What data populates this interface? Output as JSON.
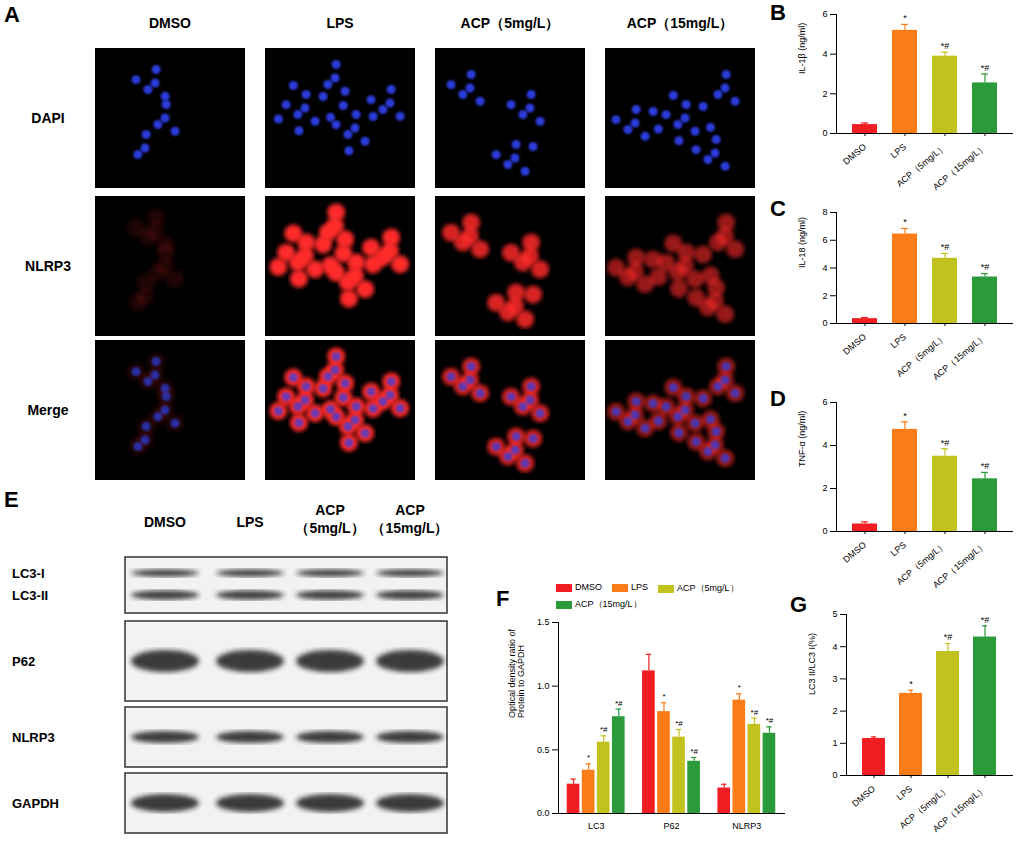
{
  "chart_data": [
    {
      "type": "bar",
      "title": "B",
      "categories": [
        "DMSO",
        "LPS",
        "ACP（5mg/L）",
        "ACP（15mg/L）"
      ],
      "values": [
        0.45,
        5.2,
        3.9,
        2.55
      ],
      "errors": [
        0.08,
        0.3,
        0.2,
        0.45
      ],
      "annotations": [
        null,
        "*",
        "*#",
        "*#"
      ],
      "colors": [
        "#f01e23",
        "#fb7b17",
        "#c2c21f",
        "#2a9a3a"
      ],
      "ylabel": "IL-1β (ng/ml)",
      "ylim": [
        0,
        6
      ],
      "yticks": [
        0,
        2,
        4,
        6
      ]
    },
    {
      "type": "bar",
      "title": "C",
      "categories": [
        "DMSO",
        "LPS",
        "ACP（5mg/L）",
        "ACP（15mg/L）"
      ],
      "values": [
        0.35,
        6.45,
        4.7,
        3.35
      ],
      "errors": [
        0.08,
        0.4,
        0.35,
        0.25
      ],
      "annotations": [
        null,
        "*",
        "*#",
        "*#"
      ],
      "colors": [
        "#f01e23",
        "#fb7b17",
        "#c2c21f",
        "#2a9a3a"
      ],
      "ylabel": "IL-18 (ng/ml)",
      "ylim": [
        0,
        8
      ],
      "yticks": [
        0,
        2,
        4,
        6,
        8
      ]
    },
    {
      "type": "bar",
      "title": "D",
      "categories": [
        "DMSO",
        "LPS",
        "ACP（5mg/L）",
        "ACP（15mg/L）"
      ],
      "values": [
        0.35,
        4.75,
        3.5,
        2.45
      ],
      "errors": [
        0.1,
        0.35,
        0.35,
        0.3
      ],
      "annotations": [
        null,
        "*",
        "*#",
        "*#"
      ],
      "colors": [
        "#f01e23",
        "#fb7b17",
        "#c2c21f",
        "#2a9a3a"
      ],
      "ylabel": "TNF-α (ng/ml)",
      "ylim": [
        0,
        6
      ],
      "yticks": [
        0,
        2,
        4,
        6
      ]
    },
    {
      "type": "bar",
      "title": "F",
      "categories": [
        "LC3",
        "P62",
        "NLRP3"
      ],
      "series": [
        {
          "name": "DMSO",
          "color": "#f01e23",
          "values": [
            0.23,
            1.12,
            0.2
          ],
          "errors": [
            0.04,
            0.13,
            0.03
          ],
          "annotations": [
            null,
            null,
            null
          ]
        },
        {
          "name": "LPS",
          "color": "#fb7b17",
          "values": [
            0.34,
            0.8,
            0.89
          ],
          "errors": [
            0.05,
            0.07,
            0.05
          ],
          "annotations": [
            "*",
            "*",
            "*"
          ]
        },
        {
          "name": "ACP（5mg/L）",
          "color": "#c2c21f",
          "values": [
            0.56,
            0.6,
            0.7
          ],
          "errors": [
            0.05,
            0.06,
            0.05
          ],
          "annotations": [
            "*#",
            "*#",
            "*#"
          ]
        },
        {
          "name": "ACP（15mg/L）",
          "color": "#2a9a3a",
          "values": [
            0.76,
            0.41,
            0.63
          ],
          "errors": [
            0.06,
            0.03,
            0.05
          ],
          "annotations": [
            "*#",
            "*#",
            "*#"
          ]
        }
      ],
      "ylabel": "Optical density ratio of\nProtein to GAPDH",
      "ylim": [
        0,
        1.5
      ],
      "yticks": [
        {
          "value": 0,
          "label": "0.0"
        },
        0.5,
        {
          "value": 1,
          "label": "1.0"
        },
        1.5
      ],
      "legend": "top-left"
    },
    {
      "type": "bar",
      "title": "G",
      "categories": [
        "DMSO",
        "LPS",
        "ACP（5mg/L）",
        "ACP（15mg/L）"
      ],
      "values": [
        1.15,
        2.55,
        3.85,
        4.3
      ],
      "errors": [
        0.05,
        0.1,
        0.25,
        0.35
      ],
      "annotations": [
        null,
        "*",
        "*#",
        "*#"
      ],
      "colors": [
        "#f01e23",
        "#fb7b17",
        "#c2c21f",
        "#2a9a3a"
      ],
      "ylabel": "LC3 II/LC3 I(%)",
      "ylim": [
        0,
        5
      ],
      "yticks": [
        0,
        1,
        2,
        3,
        4,
        5
      ]
    }
  ],
  "images": {
    "label": "A",
    "columns": [
      "DMSO",
      "LPS",
      "ACP（5mg/L）",
      "ACP（15mg/L）"
    ],
    "rows": [
      "DAPI",
      "NLRP3",
      "Merge"
    ]
  },
  "blot": {
    "label": "E",
    "lanes": [
      "DMSO",
      "LPS",
      "ACP\n（5mg/L）",
      "ACP\n（15mg/L）"
    ],
    "bands": [
      "LC3-I",
      "LC3-II",
      "P62",
      "NLRP3",
      "GAPDH"
    ]
  }
}
